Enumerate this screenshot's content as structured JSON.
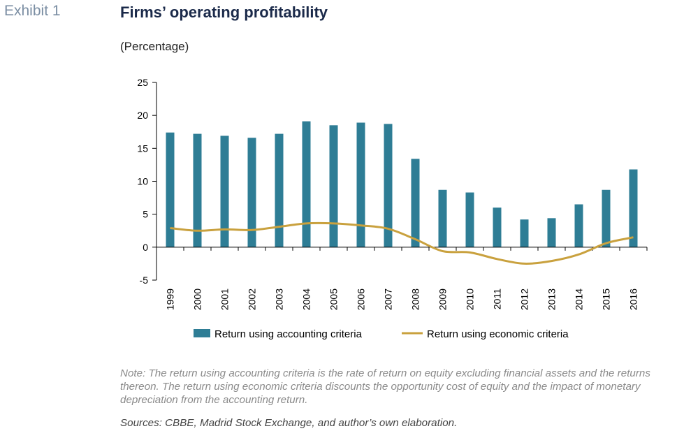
{
  "header": {
    "exhibit": "Exhibit 1",
    "title": "Firms’ operating profitability",
    "subtitle": "(Percentage)"
  },
  "footer": {
    "note": "Note: The return using accounting criteria is the rate of return on equity excluding financial assets and the returns thereon. The return using economic criteria discounts the opportunity cost of equity and the impact of monetary depreciation from the accounting return.",
    "sources": "Sources: CBBE, Madrid Stock Exchange, and author’s own elaboration."
  },
  "chart_data": {
    "type": "bar",
    "title": "Firms’ operating profitability",
    "ylabel": "",
    "xlabel": "",
    "ylim": [
      -5,
      25
    ],
    "yticks": [
      25,
      20,
      15,
      10,
      5,
      0,
      -5
    ],
    "categories": [
      "1999",
      "2000",
      "2001",
      "2002",
      "2003",
      "2004",
      "2005",
      "2006",
      "2007",
      "2008",
      "2009",
      "2010",
      "2011",
      "2012",
      "2013",
      "2014",
      "2015",
      "2016"
    ],
    "series": [
      {
        "name": "Return using accounting criteria",
        "type": "bar",
        "color": "#2e7d95",
        "values": [
          17.4,
          17.2,
          16.9,
          16.6,
          17.2,
          19.1,
          18.5,
          18.9,
          18.7,
          13.4,
          8.7,
          8.3,
          6.0,
          4.2,
          4.4,
          6.5,
          8.7,
          11.8
        ]
      },
      {
        "name": "Return using economic criteria",
        "type": "line",
        "color": "#c9a13e",
        "values": [
          2.9,
          2.5,
          2.7,
          2.6,
          3.1,
          3.6,
          3.6,
          3.3,
          2.8,
          1.2,
          -0.6,
          -0.8,
          -1.8,
          -2.5,
          -2.1,
          -1.1,
          0.6,
          1.5
        ]
      }
    ],
    "grid": false,
    "legend": "bottom"
  }
}
